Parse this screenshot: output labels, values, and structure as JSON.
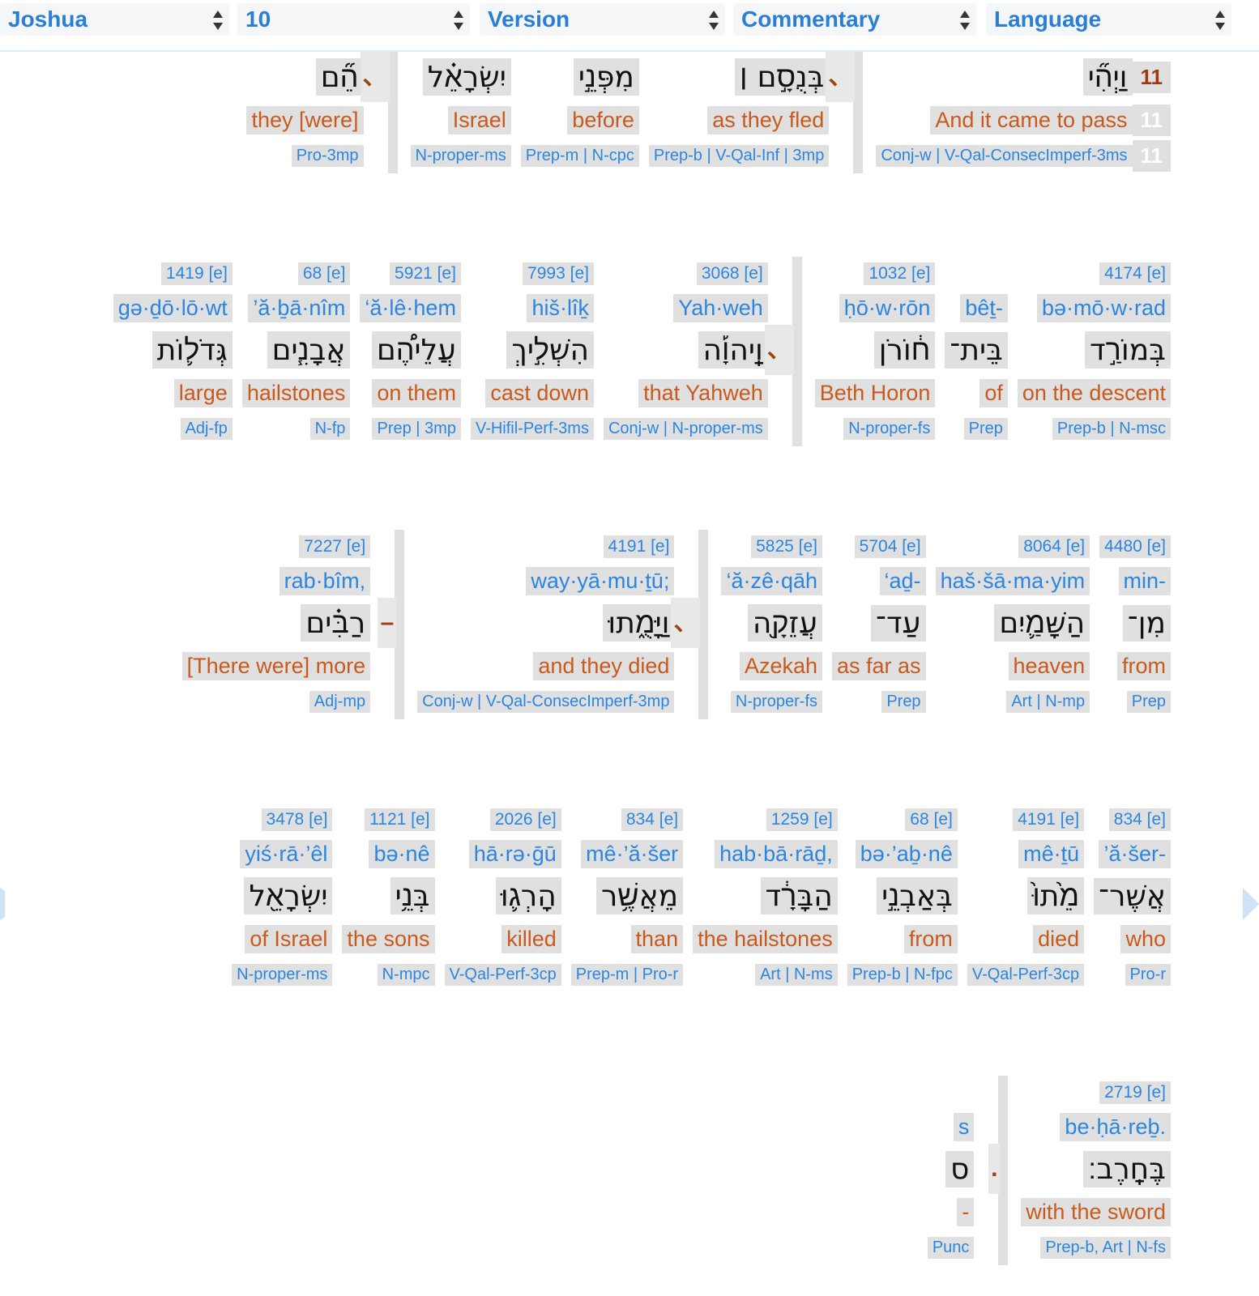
{
  "toolbar": [
    "Joshua",
    "10",
    "Version",
    "Commentary",
    "Language"
  ],
  "rows": [
    {
      "words": [
        {
          "verse": "11",
          "hebrew": "וַיְהִ֞י",
          "english": "And it came to pass",
          "morph": "Conj-w | V-Qal-ConsecImperf-3ms"
        },
        {
          "punct": "、"
        },
        {
          "hebrew": "בְּנֻסָ֣ם ׀",
          "english": "as they fled",
          "morph": "Prep-b | V-Qal-Inf | 3mp"
        },
        {
          "hebrew": "מִפְּנֵ֣י",
          "english": "before",
          "morph": "Prep-m | N-cpc"
        },
        {
          "hebrew": "יִשְׂרָאֵ֗ל",
          "english": "Israel",
          "morph": "N-proper-ms"
        },
        {
          "punct": "、"
        },
        {
          "hebrew": "הֵ֞ם",
          "english": "they [were]",
          "morph": "Pro-3mp"
        }
      ]
    },
    {
      "words": [
        {
          "strong": "4174 [e]",
          "translit": "bə·mō·w·rad",
          "hebrew": "בְּמוֹרַ֣ד",
          "english": "on the descent",
          "morph": "Prep-b | N-msc"
        },
        {
          "translit": "bêṯ-",
          "hebrew": "בֵּית־",
          "english": "of",
          "morph": "Prep"
        },
        {
          "strong": "1032 [e]",
          "translit": "ḥō·w·rōn",
          "hebrew": "ח֔וֹרֹן",
          "english": "Beth Horon",
          "morph": "N-proper-fs"
        },
        {
          "punct": "、"
        },
        {
          "strong": "3068 [e]",
          "translit": "Yah·weh",
          "hebrew": "וַֽיהוָ֡ה",
          "english": "that Yahweh",
          "morph": "Conj-w | N-proper-ms"
        },
        {
          "strong": "7993 [e]",
          "translit": "hiš·lîḵ",
          "hebrew": "הִשְׁלִ֣יךְ",
          "english": "cast down",
          "morph": "V-Hifil-Perf-3ms"
        },
        {
          "strong": "5921 [e]",
          "translit": "‘ă·lê·hem",
          "hebrew": "עֲלֵיהֶ֠ם",
          "english": "on them",
          "morph": "Prep | 3mp"
        },
        {
          "strong": "68 [e]",
          "translit": "’ă·ḇā·nîm",
          "hebrew": "אֲבָנִ֧ים",
          "english": "hailstones",
          "morph": "N-fp"
        },
        {
          "strong": "1419 [e]",
          "translit": "gə·ḏō·lō·wt",
          "hebrew": "גְּדֹל֛וֹת",
          "english": "large",
          "morph": "Adj-fp"
        }
      ]
    },
    {
      "words": [
        {
          "strong": "4480 [e]",
          "translit": "min-",
          "hebrew": "מִן־",
          "english": "from",
          "morph": "Prep"
        },
        {
          "strong": "8064 [e]",
          "translit": "haš·šā·ma·yim",
          "hebrew": "הַשָּׁמַ֛יִם",
          "english": "heaven",
          "morph": "Art | N-mp"
        },
        {
          "strong": "5704 [e]",
          "translit": "‘aḏ-",
          "hebrew": "עַד־",
          "english": "as far as",
          "morph": "Prep"
        },
        {
          "strong": "5825 [e]",
          "translit": "‘ă·zê·qāh",
          "hebrew": "עֲזֵקָ֖ה",
          "english": "Azekah",
          "morph": "N-proper-fs"
        },
        {
          "punct": "、"
        },
        {
          "strong": "4191 [e]",
          "translit": "way·yā·mu·ṯū;",
          "hebrew": "וַיָּמֻ֑תוּ",
          "english": "and they died",
          "morph": "Conj-w | V-Qal-ConsecImperf-3mp"
        },
        {
          "punct": "–"
        },
        {
          "strong": "7227 [e]",
          "translit": "rab·bîm,",
          "hebrew": "רַבִּ֗ים",
          "english": "[There were] more",
          "morph": "Adj-mp"
        }
      ]
    },
    {
      "words": [
        {
          "strong": "834 [e]",
          "translit": "’ă·šer-",
          "hebrew": "אֲשֶׁר־",
          "english": "who",
          "morph": "Pro-r"
        },
        {
          "strong": "4191 [e]",
          "translit": "mê·ṯū",
          "hebrew": "מֵ֙תוּ֙",
          "english": "died",
          "morph": "V-Qal-Perf-3cp"
        },
        {
          "strong": "68 [e]",
          "translit": "bə·’aḇ·nê",
          "hebrew": "בְּאַבְנֵ֣י",
          "english": "from",
          "morph": "Prep-b | N-fpc"
        },
        {
          "strong": "1259 [e]",
          "translit": "hab·bā·rāḏ,",
          "hebrew": "הַבָּרָ֔ד",
          "english": "the hailstones",
          "morph": "Art | N-ms"
        },
        {
          "strong": "834 [e]",
          "translit": "mê·’ă·šer",
          "hebrew": "מֵאֲשֶׁ֥ר",
          "english": "than",
          "morph": "Prep-m | Pro-r"
        },
        {
          "strong": "2026 [e]",
          "translit": "hā·rə·ḡū",
          "hebrew": "הָרְג֛וּ",
          "english": "killed",
          "morph": "V-Qal-Perf-3cp"
        },
        {
          "strong": "1121 [e]",
          "translit": "bə·nê",
          "hebrew": "בְּנֵ֥י",
          "english": "the sons",
          "morph": "N-mpc"
        },
        {
          "strong": "3478 [e]",
          "translit": "yiś·rā·’êl",
          "hebrew": "יִשְׂרָאֵ֖ל",
          "english": "of Israel",
          "morph": "N-proper-ms"
        }
      ]
    },
    {
      "words": [
        {
          "strong": "2719 [e]",
          "translit": "be·ḥā·reḇ.",
          "hebrew": "בֶּחָֽרֶב׃",
          "english": "with the sword",
          "morph": "Prep-b, Art | N-fs"
        },
        {
          "punct": "."
        },
        {
          "translit": "s",
          "hebrew": "ס",
          "english": "-",
          "morph": "Punc"
        }
      ]
    }
  ]
}
